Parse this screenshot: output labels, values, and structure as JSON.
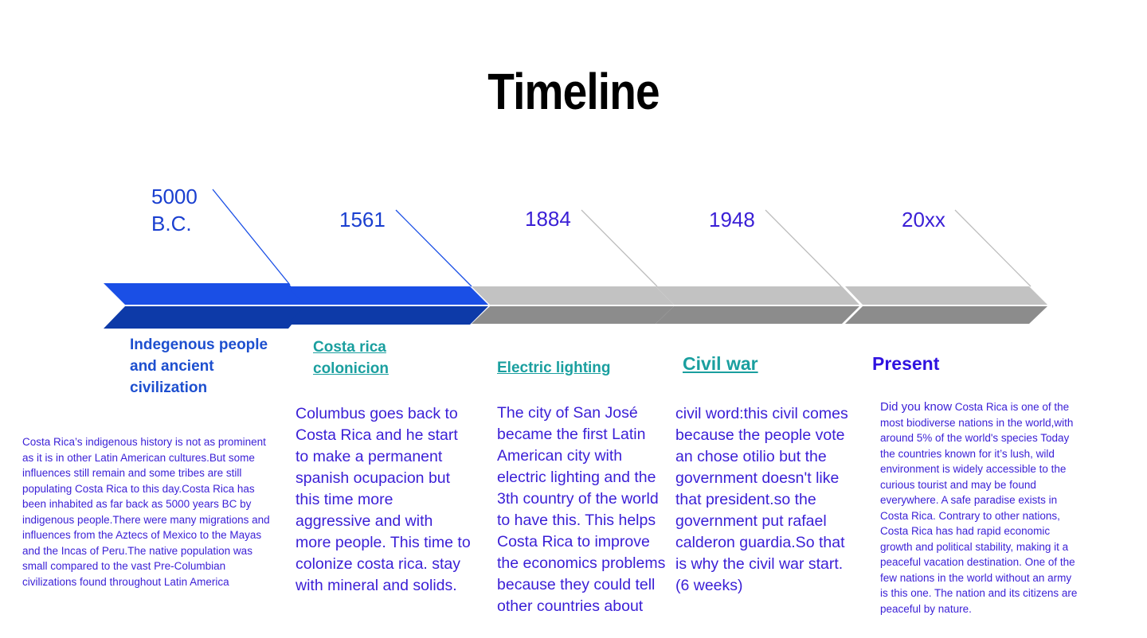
{
  "title": "Timeline",
  "events": [
    {
      "year": "5000 B.C.",
      "heading": "Indegenous people and ancient civilization",
      "text": "Costa Rica’s indigenous history is not as prominent as it is in other Latin American cultures.But some influences still remain and some tribes are still populating Costa Rica to this day.Costa Rica has been inhabited as far back as 5000 years BC by indigenous people.There were many migrations and influences from the Aztecs of Mexico to the Mayas and the Incas of Peru.The native population was small compared to the vast Pre-Columbian civilizations found throughout Latin America"
    },
    {
      "year": "1561",
      "heading": "Costa rica colonicion",
      "text": "Columbus goes back to Costa Rica and he start to make a permanent spanish ocupacion but this time more aggressive and with more people. This time to colonize costa rica. stay with mineral and solids."
    },
    {
      "year": "1884",
      "heading": "Electric lighting",
      "text": "The city of San José became the first Latin American city with electric lighting and the 3th country of the world to have this. This helps Costa Rica to improve the economics problems because they could tell other countries about"
    },
    {
      "year": "1948",
      "heading": "Civil war",
      "text": "civil word:this civil comes because the people vote an chose otilio but the government doesn't like that president.so the government put rafael calderon guardia.So that is why the civil war start.(6 weeks)"
    },
    {
      "year": "20xx",
      "heading": "Present",
      "text_lead": "Did you know",
      "text": " Costa Rica is one of the most biodiverse nations in the world,with  around 5% of the world's species Today the countries known for it’s lush, wild environment is widely accessible to the curious tourist and may be found everywhere. A safe paradise exists in Costa Rica. Contrary to other nations, Costa Rica has had rapid economic growth and political stability, making it a peaceful vacation destination. One of the few nations in the world without an army is this one. The nation and its citizens are peaceful by nature."
    }
  ],
  "colors": {
    "blue_top": "#1a4fe6",
    "blue_bottom": "#0d3aa8",
    "gray_top": "#c2c2c2",
    "gray_bottom": "#8c8c8c",
    "heading_teal": "#1a9f9f",
    "text_violet": "#3a1fd6"
  }
}
